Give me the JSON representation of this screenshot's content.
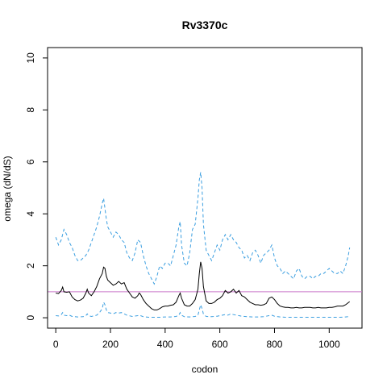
{
  "chart_data": {
    "type": "line",
    "title": "Rv3370c",
    "xlabel": "codon",
    "ylabel": "omega (dN/dS)",
    "xlim": [
      -30,
      1120
    ],
    "ylim": [
      -0.4,
      10.4
    ],
    "x_ticks": [
      0,
      200,
      400,
      600,
      800,
      1000
    ],
    "y_ticks": [
      0,
      2,
      4,
      6,
      8,
      10
    ],
    "grid": false,
    "legend": "none",
    "reference_line": {
      "y": 1,
      "color": "#c978c9"
    },
    "colors": {
      "estimate": "#000000",
      "bounds": "#3a9ee0"
    },
    "series": [
      {
        "role": "upper-bound",
        "style": "dashed",
        "x": [
          0,
          10,
          20,
          30,
          40,
          50,
          60,
          70,
          80,
          90,
          100,
          110,
          120,
          130,
          140,
          150,
          160,
          170,
          175,
          180,
          185,
          190,
          200,
          210,
          220,
          230,
          240,
          250,
          260,
          270,
          280,
          290,
          300,
          310,
          320,
          330,
          340,
          350,
          360,
          370,
          380,
          390,
          400,
          410,
          420,
          430,
          440,
          450,
          455,
          460,
          470,
          480,
          490,
          500,
          510,
          520,
          525,
          530,
          535,
          540,
          550,
          560,
          570,
          580,
          590,
          600,
          610,
          620,
          630,
          640,
          650,
          660,
          670,
          680,
          690,
          700,
          710,
          720,
          730,
          740,
          750,
          760,
          770,
          780,
          790,
          800,
          810,
          820,
          830,
          840,
          850,
          860,
          870,
          880,
          890,
          900,
          910,
          920,
          930,
          940,
          950,
          960,
          970,
          980,
          990,
          1000,
          1010,
          1020,
          1030,
          1040,
          1050,
          1060,
          1070,
          1075
        ],
        "y": [
          3.1,
          2.8,
          3.0,
          3.4,
          3.2,
          2.9,
          2.7,
          2.4,
          2.2,
          2.2,
          2.3,
          2.4,
          2.6,
          2.9,
          3.2,
          3.5,
          3.9,
          4.4,
          4.6,
          4.2,
          3.8,
          3.5,
          3.3,
          3.1,
          3.3,
          3.2,
          3.0,
          2.9,
          2.5,
          2.3,
          2.2,
          2.5,
          3.0,
          2.9,
          2.4,
          2.0,
          1.7,
          1.5,
          1.3,
          1.6,
          2.0,
          1.9,
          2.1,
          2.1,
          2.0,
          2.4,
          2.8,
          3.5,
          3.7,
          2.8,
          2.1,
          2.0,
          2.5,
          3.4,
          3.6,
          4.6,
          5.3,
          5.6,
          5.0,
          3.6,
          2.6,
          2.4,
          2.2,
          2.5,
          2.8,
          2.6,
          3.0,
          3.2,
          3.0,
          3.2,
          3.0,
          2.9,
          2.7,
          2.6,
          2.3,
          2.4,
          2.2,
          2.5,
          2.6,
          2.4,
          2.1,
          2.4,
          2.5,
          2.6,
          2.8,
          2.3,
          2.0,
          1.9,
          1.7,
          1.8,
          1.7,
          1.6,
          1.5,
          1.8,
          1.9,
          1.6,
          1.5,
          1.6,
          1.6,
          1.5,
          1.6,
          1.6,
          1.7,
          1.7,
          1.8,
          1.9,
          1.8,
          1.7,
          1.7,
          1.8,
          1.7,
          2.0,
          2.4,
          2.7
        ]
      },
      {
        "role": "estimate",
        "style": "solid",
        "x": [
          0,
          10,
          20,
          25,
          30,
          40,
          50,
          60,
          70,
          80,
          90,
          100,
          110,
          115,
          120,
          130,
          140,
          150,
          160,
          170,
          175,
          180,
          185,
          190,
          200,
          210,
          220,
          230,
          240,
          250,
          260,
          270,
          280,
          290,
          300,
          305,
          310,
          320,
          330,
          340,
          350,
          360,
          370,
          380,
          390,
          400,
          410,
          420,
          430,
          440,
          450,
          455,
          460,
          470,
          480,
          490,
          500,
          510,
          520,
          525,
          530,
          535,
          540,
          550,
          560,
          570,
          580,
          590,
          600,
          610,
          620,
          630,
          640,
          650,
          660,
          670,
          680,
          690,
          700,
          710,
          720,
          730,
          740,
          750,
          760,
          770,
          780,
          790,
          800,
          810,
          820,
          830,
          840,
          850,
          860,
          870,
          880,
          890,
          900,
          910,
          920,
          930,
          940,
          950,
          960,
          970,
          980,
          990,
          1000,
          1010,
          1020,
          1030,
          1040,
          1050,
          1060,
          1070,
          1075
        ],
        "y": [
          0.95,
          0.93,
          1.05,
          1.18,
          1.0,
          0.98,
          1.0,
          0.8,
          0.7,
          0.65,
          0.68,
          0.75,
          0.95,
          1.1,
          0.95,
          0.85,
          1.0,
          1.2,
          1.5,
          1.7,
          1.95,
          1.9,
          1.6,
          1.45,
          1.35,
          1.25,
          1.3,
          1.4,
          1.3,
          1.35,
          1.1,
          0.95,
          0.8,
          0.75,
          0.85,
          0.95,
          0.9,
          0.7,
          0.55,
          0.45,
          0.35,
          0.3,
          0.3,
          0.35,
          0.42,
          0.45,
          0.45,
          0.48,
          0.5,
          0.6,
          0.85,
          0.95,
          0.75,
          0.5,
          0.45,
          0.45,
          0.55,
          0.7,
          1.1,
          1.7,
          2.15,
          1.9,
          1.2,
          0.65,
          0.55,
          0.55,
          0.6,
          0.7,
          0.75,
          0.85,
          1.05,
          0.95,
          1.0,
          1.1,
          0.95,
          1.05,
          0.85,
          0.8,
          0.7,
          0.6,
          0.55,
          0.5,
          0.5,
          0.48,
          0.5,
          0.55,
          0.75,
          0.8,
          0.7,
          0.55,
          0.45,
          0.42,
          0.4,
          0.4,
          0.38,
          0.38,
          0.4,
          0.38,
          0.38,
          0.4,
          0.4,
          0.4,
          0.38,
          0.38,
          0.4,
          0.38,
          0.38,
          0.38,
          0.4,
          0.4,
          0.42,
          0.45,
          0.45,
          0.45,
          0.5,
          0.58,
          0.62
        ]
      },
      {
        "role": "lower-bound",
        "style": "dashed",
        "x": [
          0,
          10,
          20,
          25,
          30,
          40,
          50,
          60,
          80,
          100,
          110,
          115,
          120,
          130,
          150,
          160,
          170,
          175,
          180,
          185,
          190,
          200,
          210,
          220,
          230,
          240,
          250,
          260,
          280,
          300,
          305,
          310,
          320,
          340,
          360,
          380,
          400,
          420,
          440,
          450,
          455,
          460,
          470,
          490,
          510,
          520,
          525,
          530,
          535,
          540,
          550,
          570,
          590,
          610,
          620,
          630,
          640,
          650,
          660,
          670,
          680,
          700,
          720,
          740,
          760,
          780,
          790,
          800,
          820,
          840,
          860,
          880,
          900,
          920,
          940,
          960,
          980,
          1000,
          1020,
          1040,
          1060,
          1075
        ],
        "y": [
          0.08,
          0.07,
          0.12,
          0.2,
          0.1,
          0.08,
          0.1,
          0.05,
          0.03,
          0.04,
          0.08,
          0.15,
          0.08,
          0.05,
          0.1,
          0.2,
          0.35,
          0.6,
          0.5,
          0.3,
          0.2,
          0.18,
          0.15,
          0.2,
          0.18,
          0.2,
          0.15,
          0.1,
          0.05,
          0.08,
          0.1,
          0.08,
          0.04,
          0.02,
          0.02,
          0.02,
          0.03,
          0.03,
          0.05,
          0.1,
          0.2,
          0.1,
          0.04,
          0.03,
          0.05,
          0.1,
          0.3,
          0.5,
          0.35,
          0.15,
          0.05,
          0.04,
          0.06,
          0.1,
          0.12,
          0.1,
          0.15,
          0.12,
          0.1,
          0.08,
          0.06,
          0.04,
          0.03,
          0.03,
          0.04,
          0.08,
          0.1,
          0.06,
          0.03,
          0.02,
          0.02,
          0.02,
          0.02,
          0.02,
          0.02,
          0.02,
          0.02,
          0.02,
          0.02,
          0.02,
          0.03,
          0.05
        ]
      }
    ]
  }
}
